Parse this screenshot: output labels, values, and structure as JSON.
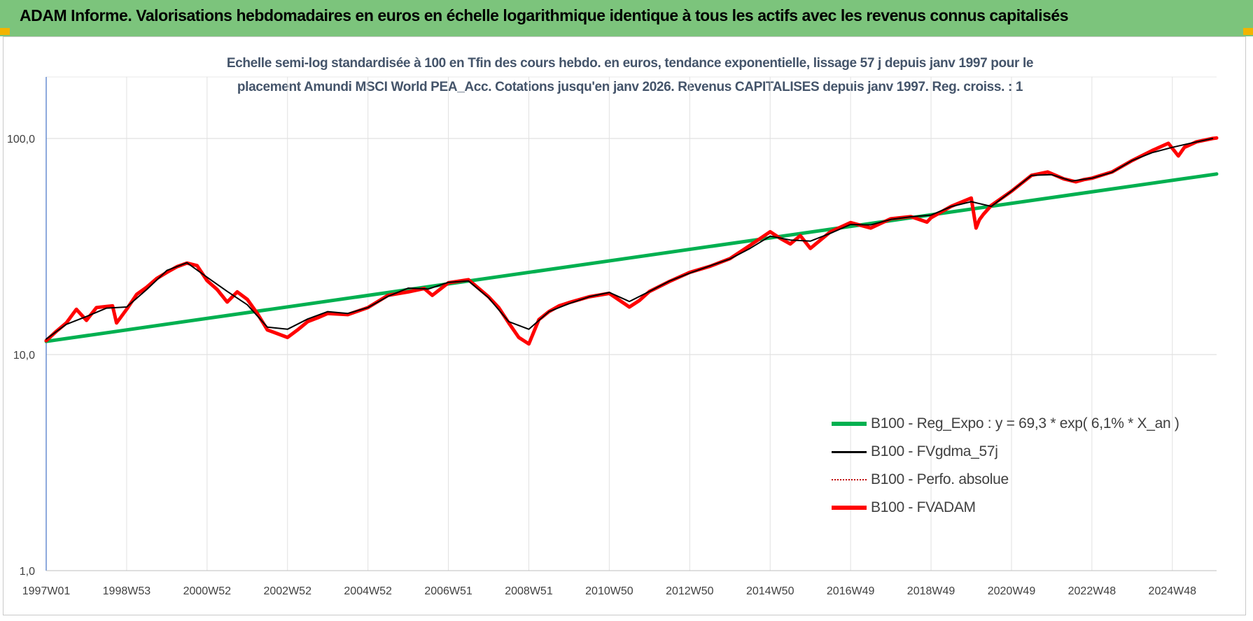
{
  "header": {
    "title": "ADAM Informe. Valorisations hebdomadaires en euros en échelle logarithmique identique à tous les actifs avec les revenus connus capitalisés"
  },
  "chart_data": {
    "type": "line",
    "title_line1": "Echelle semi-log standardisée à 100 en Tfin des cours hebdo. en euros, tendance exponentielle, lissage 57 j depuis janv 1997 pour le",
    "title_line2": "placement Amundi MSCI World PEA_Acc. Cotations jusqu'en janv 2026. Revenus CAPITALISES depuis janv 1997. Reg. croiss. : 1",
    "y_scale": "log",
    "ylim": [
      1,
      100
    ],
    "y_ticks": [
      1,
      10,
      100
    ],
    "y_tick_labels": [
      "1,0",
      "10,0",
      "100,0"
    ],
    "x_tick_labels": [
      "1997W01",
      "1998W53",
      "2000W52",
      "2002W52",
      "2004W52",
      "2006W51",
      "2008W51",
      "2010W50",
      "2012W50",
      "2014W50",
      "2016W49",
      "2018W49",
      "2020W49",
      "2022W48",
      "2024W48"
    ],
    "x_tick_years": [
      1997.0,
      1999.0,
      2001.0,
      2003.0,
      2005.0,
      2007.0,
      2009.0,
      2011.0,
      2013.0,
      2015.0,
      2017.0,
      2019.0,
      2021.0,
      2023.0,
      2025.0
    ],
    "xlim": [
      1997.0,
      2026.1
    ],
    "grid": true,
    "legend_position": "bottom-right",
    "series": [
      {
        "name": "B100 - Reg_Expo : y = 69,3 * exp( 6,1% *  X_an )",
        "color": "#00b050",
        "style": "solid-thick",
        "x": [
          1997.0,
          2026.1
        ],
        "y": [
          11.5,
          68.5
        ]
      },
      {
        "name": "B100 - FVgdma_57j",
        "color": "#000000",
        "style": "solid-thin",
        "x": [
          1997.0,
          1997.5,
          1998.0,
          1998.5,
          1999.0,
          1999.5,
          2000.0,
          2000.5,
          2001.0,
          2001.5,
          2002.0,
          2002.5,
          2003.0,
          2003.5,
          2004.0,
          2004.5,
          2005.0,
          2005.5,
          2006.0,
          2006.5,
          2007.0,
          2007.5,
          2008.0,
          2008.5,
          2009.0,
          2009.5,
          2010.0,
          2010.5,
          2011.0,
          2011.5,
          2012.0,
          2012.5,
          2013.0,
          2013.5,
          2014.0,
          2014.5,
          2015.0,
          2015.5,
          2016.0,
          2016.5,
          2017.0,
          2017.5,
          2018.0,
          2018.5,
          2019.0,
          2019.5,
          2020.0,
          2020.5,
          2021.0,
          2021.5,
          2022.0,
          2022.5,
          2023.0,
          2023.5,
          2024.0,
          2024.5,
          2025.0,
          2025.5,
          2026.0
        ],
        "y": [
          11.8,
          13.8,
          15.0,
          16.4,
          16.6,
          20.0,
          24.5,
          26.6,
          22.8,
          19.6,
          17.0,
          13.4,
          13.1,
          14.6,
          15.8,
          15.5,
          16.5,
          18.6,
          20.3,
          20.1,
          21.6,
          21.9,
          18.3,
          14.2,
          13.1,
          15.8,
          17.2,
          18.5,
          19.4,
          17.6,
          19.6,
          21.9,
          23.8,
          25.7,
          27.7,
          31.0,
          35.3,
          33.9,
          33.5,
          36.4,
          40.0,
          39.8,
          42.2,
          43.4,
          44.2,
          48.4,
          51.0,
          48.5,
          57.0,
          67.5,
          68.0,
          63.5,
          65.5,
          69.7,
          79.0,
          86.0,
          91.0,
          95.5,
          100.0
        ]
      },
      {
        "name": "B100 - Perfo. absolue",
        "color": "#c00000",
        "style": "dotted",
        "x": [],
        "y": []
      },
      {
        "name": "B100 - FVADAM",
        "color": "#ff0000",
        "style": "solid-thick",
        "x": [
          1997.0,
          1997.25,
          1997.5,
          1997.75,
          1998.0,
          1998.25,
          1998.5,
          1998.65,
          1998.75,
          1999.0,
          1999.25,
          1999.5,
          1999.75,
          2000.0,
          2000.25,
          2000.5,
          2000.75,
          2001.0,
          2001.25,
          2001.5,
          2001.75,
          2002.0,
          2002.25,
          2002.5,
          2002.75,
          2003.0,
          2003.25,
          2003.5,
          2003.75,
          2004.0,
          2004.5,
          2005.0,
          2005.5,
          2006.0,
          2006.4,
          2006.6,
          2007.0,
          2007.5,
          2008.0,
          2008.25,
          2008.5,
          2008.75,
          2009.0,
          2009.25,
          2009.5,
          2009.75,
          2010.0,
          2010.5,
          2011.0,
          2011.5,
          2011.75,
          2012.0,
          2012.5,
          2013.0,
          2013.5,
          2014.0,
          2014.5,
          2015.0,
          2015.25,
          2015.5,
          2015.75,
          2016.0,
          2016.5,
          2017.0,
          2017.5,
          2018.0,
          2018.5,
          2018.9,
          2019.0,
          2019.5,
          2020.0,
          2020.12,
          2020.2,
          2020.3,
          2020.5,
          2021.0,
          2021.5,
          2021.9,
          2022.3,
          2022.6,
          2022.8,
          2023.0,
          2023.5,
          2024.0,
          2024.5,
          2024.9,
          2025.15,
          2025.3,
          2025.6,
          2026.0,
          2026.1
        ],
        "y": [
          11.6,
          12.8,
          14.0,
          16.2,
          14.4,
          16.5,
          16.7,
          16.8,
          14.0,
          16.2,
          19.0,
          20.5,
          22.5,
          24.0,
          25.5,
          26.5,
          25.8,
          22.0,
          20.0,
          17.5,
          19.5,
          18.0,
          15.5,
          13.0,
          12.5,
          12.0,
          13.0,
          14.2,
          14.8,
          15.5,
          15.3,
          16.5,
          18.8,
          19.5,
          20.2,
          18.8,
          21.5,
          22.2,
          18.5,
          16.5,
          14.0,
          12.0,
          11.2,
          14.5,
          15.8,
          16.8,
          17.4,
          18.5,
          19.2,
          16.6,
          17.8,
          19.6,
          21.8,
          24.0,
          25.6,
          27.8,
          32.0,
          37.0,
          34.5,
          32.5,
          35.5,
          31.0,
          37.0,
          40.8,
          38.5,
          42.5,
          43.5,
          41.0,
          43.0,
          48.5,
          53.0,
          38.5,
          42.0,
          44.5,
          49.0,
          57.0,
          67.5,
          70.0,
          65.0,
          63.0,
          64.5,
          65.5,
          70.0,
          79.0,
          88.0,
          95.0,
          83.0,
          91.0,
          96.5,
          100.0,
          100.5
        ]
      }
    ]
  }
}
